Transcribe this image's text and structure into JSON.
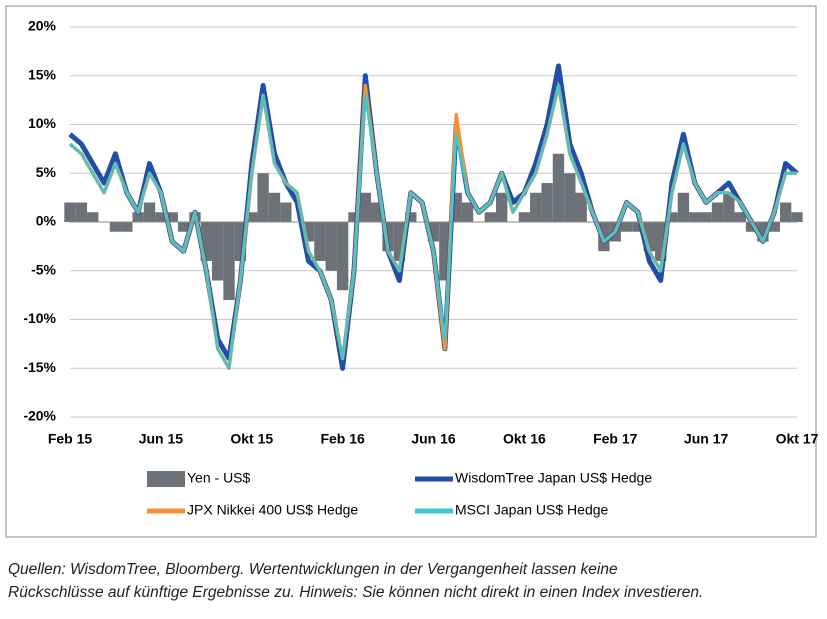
{
  "chart_data": {
    "type": "line",
    "categories": [
      "Feb 15",
      null,
      null,
      null,
      null,
      null,
      null,
      null,
      "Jun 15",
      null,
      null,
      null,
      null,
      null,
      null,
      null,
      "Okt 15",
      null,
      null,
      null,
      null,
      null,
      null,
      null,
      "Feb 16",
      null,
      null,
      null,
      null,
      null,
      null,
      null,
      "Jun 16",
      null,
      null,
      null,
      null,
      null,
      null,
      null,
      "Okt 16",
      null,
      null,
      null,
      null,
      null,
      null,
      null,
      "Feb 17",
      null,
      null,
      null,
      null,
      null,
      null,
      null,
      "Jun 17",
      null,
      null,
      null,
      null,
      null,
      null,
      null,
      "Okt 17"
    ],
    "series": [
      {
        "name": "Yen - US$",
        "color": "#6d7178",
        "style": "area",
        "values": [
          2,
          2,
          1,
          0,
          -1,
          -1,
          1,
          2,
          1,
          1,
          -1,
          1,
          -4,
          -6,
          -8,
          -4,
          1,
          5,
          3,
          2,
          0,
          -2,
          -4,
          -5,
          -7,
          1,
          3,
          2,
          -3,
          -4,
          1,
          0,
          -2,
          -6,
          3,
          2,
          0,
          1,
          3,
          0,
          1,
          3,
          4,
          7,
          5,
          3,
          0,
          -3,
          -2,
          -1,
          -1,
          -3,
          -4,
          1,
          3,
          1,
          1,
          2,
          3,
          1,
          -1,
          -2,
          -1,
          2,
          1
        ]
      },
      {
        "name": "WisdomTree Japan US$ Hedge",
        "color": "#1f4fa8",
        "values": [
          9,
          8,
          6,
          4,
          7,
          3,
          1,
          6,
          3,
          -2,
          -3,
          1,
          -5,
          -12,
          -14,
          -6,
          6,
          14,
          7,
          4,
          2,
          -4,
          -5,
          -8,
          -15,
          -5,
          15,
          5,
          -3,
          -6,
          3,
          2,
          -3,
          -13,
          10,
          3,
          1,
          2,
          5,
          2,
          3,
          6,
          10,
          16,
          8,
          5,
          1,
          -2,
          -1,
          2,
          1,
          -4,
          -6,
          4,
          9,
          4,
          2,
          3,
          4,
          2,
          0,
          -2,
          1,
          6,
          5
        ]
      },
      {
        "name": "JPX Nikkei 400 US$ Hedge",
        "color": "#f39233",
        "values": [
          8,
          7,
          5,
          3,
          6,
          3,
          1,
          5,
          3,
          -2,
          -3,
          1,
          -5,
          -13,
          -15,
          -6,
          5,
          13,
          6,
          4,
          3,
          -3,
          -5,
          -8,
          -14,
          -5,
          14,
          5,
          -3,
          -5,
          3,
          2,
          -3,
          -13,
          11,
          3,
          1,
          2,
          5,
          1,
          3,
          5,
          9,
          14,
          7,
          4,
          1,
          -2,
          -1,
          2,
          1,
          -3,
          -5,
          3,
          8,
          4,
          2,
          3,
          3,
          2,
          0,
          -2,
          1,
          5,
          5
        ]
      },
      {
        "name": "MSCI Japan US$ Hedge",
        "color": "#3cc8d2",
        "values": [
          8,
          7,
          5,
          3,
          6,
          3,
          1,
          5,
          3,
          -2,
          -3,
          1,
          -5,
          -13,
          -15,
          -6,
          5,
          13,
          6,
          4,
          3,
          -3,
          -5,
          -8,
          -14,
          -5,
          13,
          5,
          -3,
          -5,
          3,
          2,
          -3,
          -12,
          9,
          3,
          1,
          2,
          5,
          1,
          3,
          5,
          9,
          14,
          7,
          4,
          1,
          -2,
          -1,
          2,
          1,
          -3,
          -5,
          3,
          8,
          4,
          2,
          3,
          3,
          2,
          0,
          -2,
          1,
          5,
          5
        ]
      }
    ],
    "ylim": [
      -20,
      20
    ],
    "yticks": [
      {
        "value": -20,
        "label": "-20%"
      },
      {
        "value": -15,
        "label": "-15%"
      },
      {
        "value": -10,
        "label": "-10%"
      },
      {
        "value": -5,
        "label": "-5%"
      },
      {
        "value": 0,
        "label": "0%"
      },
      {
        "value": 5,
        "label": "5%"
      },
      {
        "value": 10,
        "label": "10%"
      },
      {
        "value": 15,
        "label": "15%"
      },
      {
        "value": 20,
        "label": "20%"
      }
    ],
    "grid": true,
    "notes": [
      "Quellen: WisdomTree, Bloomberg. Wertentwicklungen in der Vergangenheit lassen keine",
      "Rückschlüsse auf künftige Ergebnisse zu. Hinweis: Sie können nicht direkt in einen Index investieren."
    ]
  }
}
